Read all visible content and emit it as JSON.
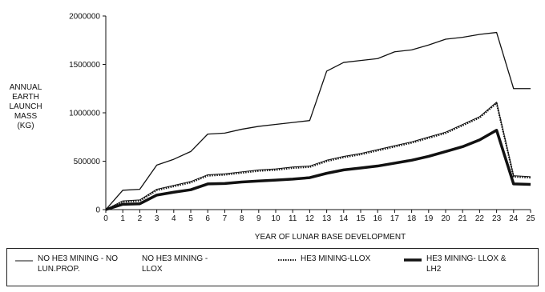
{
  "chart_data": {
    "type": "line",
    "title": "",
    "ylabel_lines": [
      "ANNUAL",
      "EARTH",
      "LAUNCH",
      "MASS",
      "(KG)"
    ],
    "xlabel": "YEAR OF LUNAR BASE DEVELOPMENT",
    "xlim": [
      0,
      25
    ],
    "ylim": [
      0,
      2000000
    ],
    "x_ticks": [
      "0",
      "1",
      "2",
      "3",
      "4",
      "5",
      "6",
      "7",
      "8",
      "9",
      "10",
      "11",
      "12",
      "13",
      "14",
      "15",
      "16",
      "17",
      "18",
      "19",
      "20",
      "21",
      "22",
      "23",
      "24",
      "25"
    ],
    "y_ticks": [
      "0",
      "500000",
      "1000000",
      "1500000",
      "2000000"
    ],
    "x": [
      0,
      1,
      2,
      3,
      4,
      5,
      6,
      7,
      8,
      9,
      10,
      11,
      12,
      13,
      14,
      15,
      16,
      17,
      18,
      19,
      20,
      21,
      22,
      23,
      24,
      25
    ],
    "series": [
      {
        "name": "NO HE3 MINING - NO LUN.PROP.",
        "style": "thin-solid",
        "values": [
          0,
          200000,
          210000,
          460000,
          520000,
          600000,
          780000,
          790000,
          830000,
          860000,
          880000,
          900000,
          920000,
          1430000,
          1520000,
          1540000,
          1560000,
          1630000,
          1650000,
          1700000,
          1760000,
          1780000,
          1810000,
          1830000,
          1250000,
          1250000
        ]
      },
      {
        "name": "NO HE3 MINING - LLOX",
        "style": "double",
        "values": [
          0,
          90000,
          100000,
          210000,
          250000,
          290000,
          360000,
          370000,
          390000,
          410000,
          420000,
          440000,
          450000,
          510000,
          550000,
          580000,
          620000,
          660000,
          700000,
          750000,
          800000,
          880000,
          960000,
          1110000,
          350000,
          340000
        ]
      },
      {
        "name": "HE3 MINING-LLOX",
        "style": "dotted",
        "values": [
          0,
          80000,
          90000,
          200000,
          240000,
          280000,
          350000,
          360000,
          380000,
          400000,
          410000,
          430000,
          440000,
          500000,
          540000,
          570000,
          610000,
          650000,
          690000,
          740000,
          790000,
          870000,
          950000,
          1100000,
          340000,
          330000
        ]
      },
      {
        "name": "HE3 MINING- LLOX & LH2",
        "style": "thick-solid",
        "values": [
          0,
          55000,
          60000,
          150000,
          180000,
          205000,
          265000,
          270000,
          285000,
          295000,
          305000,
          315000,
          330000,
          375000,
          410000,
          430000,
          450000,
          480000,
          510000,
          550000,
          600000,
          650000,
          720000,
          820000,
          265000,
          260000
        ]
      }
    ],
    "legend": {
      "placement": "bottom",
      "items": [
        {
          "label": "NO HE3 MINING - NO LUN.PROP."
        },
        {
          "label": "NO HE3 MINING - LLOX"
        },
        {
          "label": "HE3 MINING-LLOX"
        },
        {
          "label": "HE3 MINING- LLOX & LH2"
        }
      ]
    },
    "grid": false
  }
}
